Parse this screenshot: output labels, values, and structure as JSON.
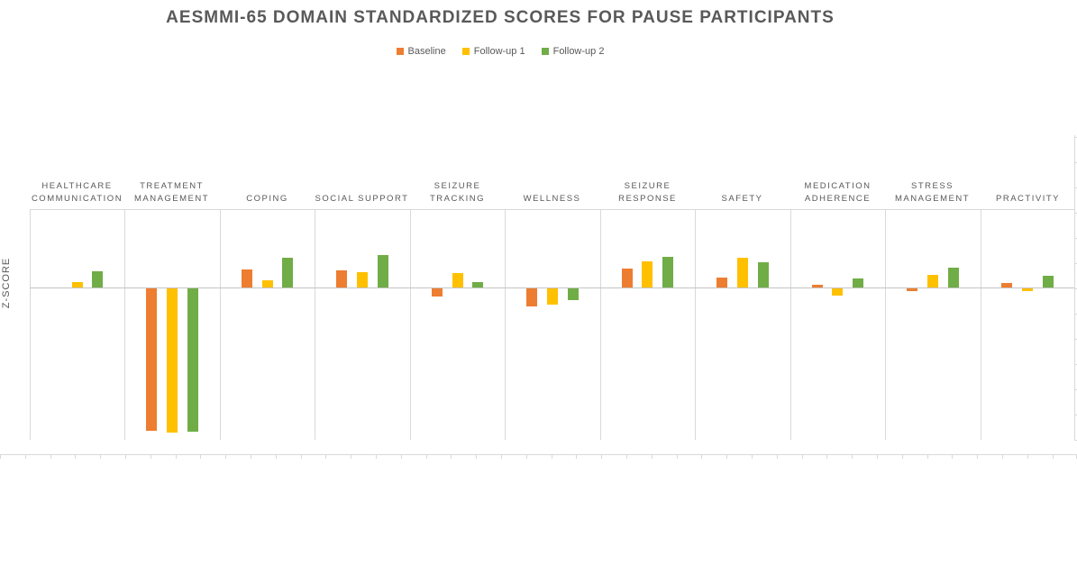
{
  "title": "AESMMI-65 DOMAIN STANDARDIZED SCORES FOR PAUSE PARTICIPANTS",
  "y_axis_label": "Z-SCORE",
  "legend": [
    {
      "label": "Baseline",
      "color": "#ED7D31"
    },
    {
      "label": "Follow-up 1",
      "color": "#FFC000"
    },
    {
      "label": "Follow-up 2",
      "color": "#70AD47"
    }
  ],
  "colors": {
    "title_text": "#595959",
    "axis_text": "#595959",
    "gridline": "#D9D9D9",
    "zero_line": "#C3C3C3"
  },
  "chart_data": {
    "type": "bar",
    "title": "AESMMI-65 DOMAIN STANDARDIZED SCORES FOR PAUSE PARTICIPANTS",
    "xlabel": "",
    "ylabel": "Z-SCORE",
    "ylim": [
      -2.0,
      1.05
    ],
    "grid": false,
    "legend_position": "top-center",
    "categories": [
      "HEALTHCARE COMMUNICATION",
      "TREATMENT MANAGEMENT",
      "COPING",
      "SOCIAL SUPPORT",
      "SEIZURE TRACKING",
      "WELLNESS",
      "SEIZURE RESPONSE",
      "SAFETY",
      "MEDICATION ADHERENCE",
      "STRESS MANAGEMENT",
      "PRACTIVITY"
    ],
    "series": [
      {
        "name": "Baseline",
        "color": "#ED7D31",
        "values": [
          0.0,
          -1.88,
          0.24,
          0.23,
          -0.11,
          -0.24,
          0.25,
          0.13,
          0.03,
          -0.04,
          0.06
        ]
      },
      {
        "name": "Follow-up 1",
        "color": "#FFC000",
        "values": [
          0.07,
          -1.9,
          0.1,
          0.2,
          0.19,
          -0.21,
          0.35,
          0.39,
          -0.09,
          0.17,
          -0.04
        ]
      },
      {
        "name": "Follow-up 2",
        "color": "#70AD47",
        "values": [
          0.21,
          -1.89,
          0.39,
          0.43,
          0.07,
          -0.15,
          0.4,
          0.33,
          0.12,
          0.26,
          0.15
        ]
      }
    ]
  }
}
